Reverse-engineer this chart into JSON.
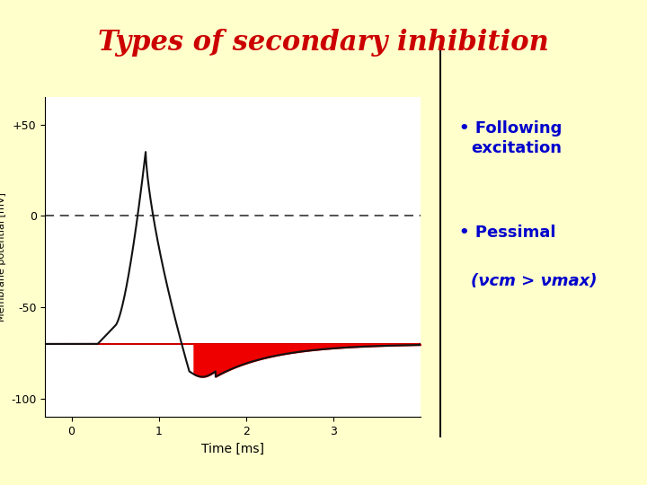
{
  "title": "Types of secondary inhibition",
  "title_color": "#cc0000",
  "title_fontsize": 22,
  "background_color": "#ffffcc",
  "plot_bg_color": "#ffffff",
  "bullet1_line1": "• Following",
  "bullet1_line2": "excitation",
  "bullet2": "• Pessimal",
  "bullet3": "(νcm > νmax)",
  "text_color": "#0000cc",
  "ylabel": "Membrane potential [mV]",
  "xlabel": "Time [ms]",
  "yticks": [
    -100,
    -50,
    0,
    50
  ],
  "ytick_labels": [
    "-100",
    "-50",
    "0",
    "+50"
  ],
  "xticks": [
    0,
    1,
    2,
    3
  ],
  "xlim": [
    -0.3,
    4.0
  ],
  "ylim": [
    -110,
    65
  ],
  "resting_potential": -70,
  "peak": 35,
  "action_potential_time": 0.85,
  "hyperpolarization_min": -85,
  "red_fill_color": "#ee0000",
  "line_color": "#111111",
  "dashed_line_color": "#333333",
  "vertical_divider_color": "#111111"
}
